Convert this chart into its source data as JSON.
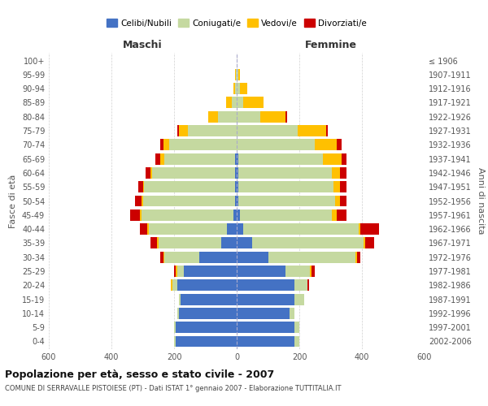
{
  "age_groups": [
    "0-4",
    "5-9",
    "10-14",
    "15-19",
    "20-24",
    "25-29",
    "30-34",
    "35-39",
    "40-44",
    "45-49",
    "50-54",
    "55-59",
    "60-64",
    "65-69",
    "70-74",
    "75-79",
    "80-84",
    "85-89",
    "90-94",
    "95-99",
    "100+"
  ],
  "birth_years": [
    "2002-2006",
    "1997-2001",
    "1992-1996",
    "1987-1991",
    "1982-1986",
    "1977-1981",
    "1972-1976",
    "1967-1971",
    "1962-1966",
    "1957-1961",
    "1952-1956",
    "1947-1951",
    "1942-1946",
    "1937-1941",
    "1932-1936",
    "1927-1931",
    "1922-1926",
    "1917-1921",
    "1912-1916",
    "1907-1911",
    "≤ 1906"
  ],
  "males": {
    "celibi": [
      195,
      195,
      185,
      180,
      190,
      170,
      120,
      50,
      30,
      10,
      5,
      5,
      5,
      5,
      0,
      0,
      0,
      0,
      0,
      0,
      0
    ],
    "coniugati": [
      5,
      5,
      5,
      5,
      15,
      20,
      110,
      200,
      250,
      295,
      295,
      290,
      265,
      225,
      215,
      155,
      60,
      15,
      5,
      2,
      0
    ],
    "vedovi": [
      0,
      0,
      0,
      0,
      5,
      5,
      5,
      5,
      5,
      5,
      5,
      5,
      5,
      15,
      20,
      30,
      30,
      20,
      5,
      2,
      0
    ],
    "divorziati": [
      0,
      0,
      0,
      0,
      0,
      5,
      10,
      20,
      25,
      30,
      20,
      15,
      15,
      15,
      10,
      5,
      0,
      0,
      0,
      0,
      0
    ]
  },
  "females": {
    "nubili": [
      185,
      185,
      170,
      185,
      185,
      155,
      100,
      50,
      20,
      10,
      5,
      5,
      5,
      5,
      0,
      0,
      0,
      0,
      0,
      0,
      0
    ],
    "coniugate": [
      15,
      15,
      15,
      30,
      40,
      80,
      280,
      355,
      370,
      295,
      310,
      305,
      300,
      270,
      250,
      195,
      75,
      20,
      10,
      5,
      0
    ],
    "vedove": [
      0,
      0,
      0,
      0,
      0,
      5,
      5,
      5,
      5,
      15,
      15,
      20,
      25,
      60,
      70,
      90,
      80,
      65,
      25,
      5,
      0
    ],
    "divorziate": [
      0,
      0,
      0,
      0,
      5,
      10,
      10,
      30,
      60,
      30,
      20,
      20,
      20,
      15,
      15,
      5,
      5,
      0,
      0,
      0,
      0
    ]
  },
  "colors": {
    "celibi": "#4472c4",
    "coniugati": "#c5d9a0",
    "vedovi": "#ffc000",
    "divorziati": "#cc0000"
  },
  "xlim": 600,
  "title": "Popolazione per età, sesso e stato civile - 2007",
  "subtitle": "COMUNE DI SERRAVALLE PISTOIESE (PT) - Dati ISTAT 1° gennaio 2007 - Elaborazione TUTTITALIA.IT",
  "ylabel": "Fasce di età",
  "ylabel_right": "Anni di nascita",
  "legend_labels": [
    "Celibi/Nubili",
    "Coniugati/e",
    "Vedovi/e",
    "Divorziati/e"
  ],
  "grid_color": "#cccccc"
}
